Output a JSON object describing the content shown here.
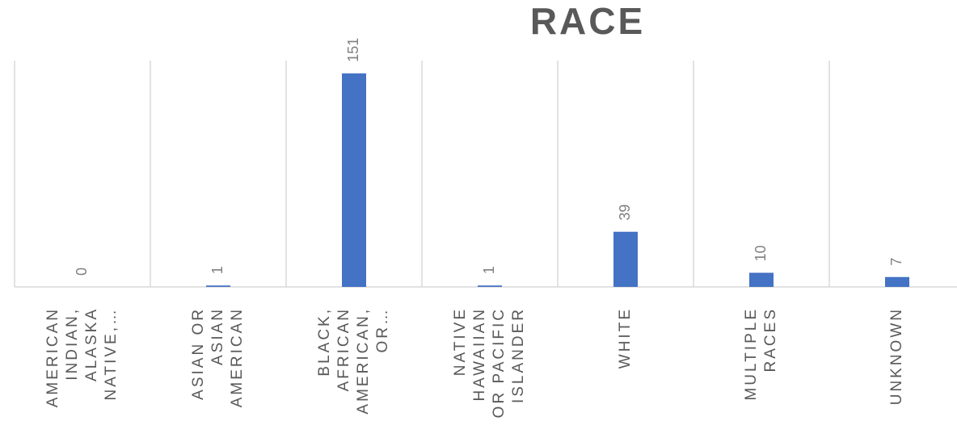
{
  "chart_data": {
    "type": "bar",
    "title": "RACE",
    "categories": [
      "AMERICAN INDIAN, ALASKA NATIVE,…",
      "ASIAN OR ASIAN AMERICAN",
      "BLACK, AFRICAN AMERICAN, OR…",
      "NATIVE HAWAIIAN OR PACIFIC ISLANDER",
      "WHITE",
      "MULTIPLE RACES",
      "UNKNOWN"
    ],
    "values": [
      0,
      1,
      151,
      1,
      39,
      10,
      7
    ],
    "color": "#4472c4",
    "ylim": [
      0,
      160
    ]
  }
}
